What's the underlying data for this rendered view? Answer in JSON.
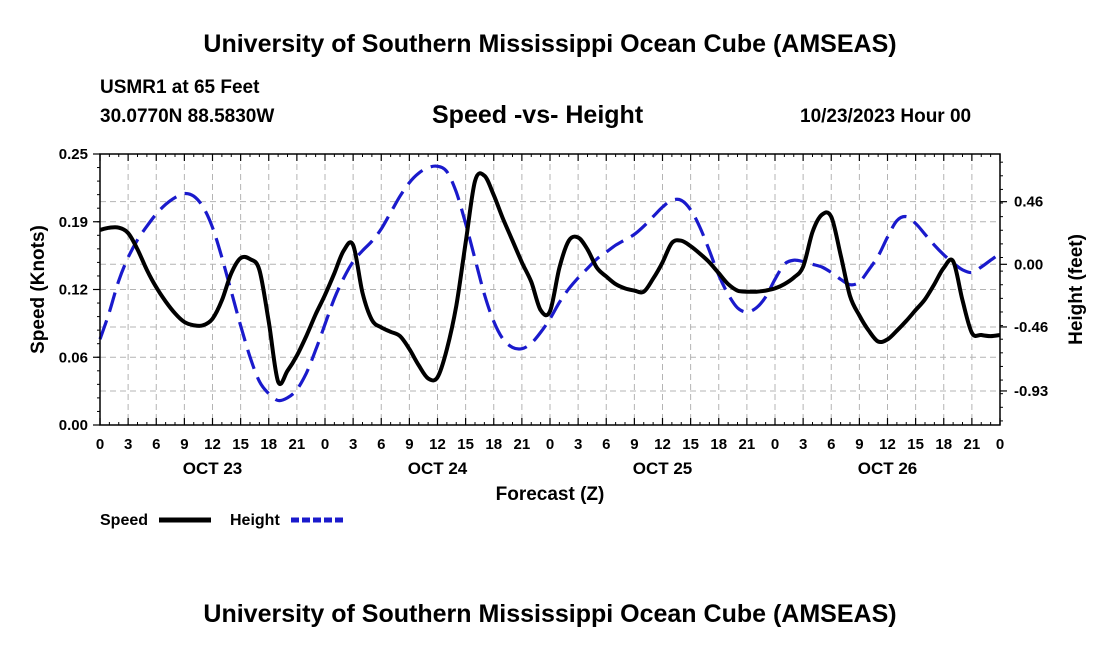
{
  "header": {
    "title": "University of Southern Mississippi Ocean Cube (AMSEAS)",
    "footer_title": "University of Southern Mississippi Ocean Cube (AMSEAS)",
    "station_name": "USMR1 at 65 Feet",
    "coordinates": "30.0770N  88.5830W",
    "chart_title": "Speed -vs- Height",
    "datetime": "10/23/2023 Hour 00"
  },
  "chart_data": {
    "type": "line",
    "title": "Speed -vs- Height",
    "xlabel": "Forecast (Z)",
    "ylabel": "Speed (Knots)",
    "y2label": "Height (feet)",
    "xlim": [
      0,
      96
    ],
    "ylim": [
      0,
      0.25
    ],
    "y2lim": [
      -1.18,
      0.81
    ],
    "y_ticks": [
      "0.00",
      "0.06",
      "0.12",
      "0.19",
      "0.25"
    ],
    "y_tick_values": [
      0,
      0.0625,
      0.125,
      0.1875,
      0.25
    ],
    "y2_ticks": [
      "0.46",
      "0.00",
      "-0.46",
      "-0.93"
    ],
    "y2_tick_values": [
      0.46,
      0.0,
      -0.46,
      -0.93
    ],
    "x_tick_labels": [
      "0",
      "3",
      "6",
      "9",
      "12",
      "15",
      "18",
      "21",
      "0",
      "3",
      "6",
      "9",
      "12",
      "15",
      "18",
      "21",
      "0",
      "3",
      "6",
      "9",
      "12",
      "15",
      "18",
      "21",
      "0",
      "3",
      "6",
      "9",
      "12",
      "15",
      "18",
      "21",
      "0"
    ],
    "day_labels": [
      {
        "label": "OCT 23",
        "hour": 12
      },
      {
        "label": "OCT 24",
        "hour": 36
      },
      {
        "label": "OCT 25",
        "hour": 60
      },
      {
        "label": "OCT 26",
        "hour": 84
      }
    ],
    "grid": true,
    "legend": [
      {
        "name": "Speed",
        "color": "#000000",
        "style": "solid"
      },
      {
        "name": "Height",
        "color": "#1a1acc",
        "style": "dashed"
      }
    ],
    "series": [
      {
        "name": "Speed",
        "axis": "left",
        "color": "#000000",
        "x": [
          0,
          1,
          2,
          3,
          4,
          5,
          6,
          7,
          8,
          9,
          10,
          11,
          12,
          13,
          14,
          15,
          16,
          17,
          18,
          19,
          20,
          21,
          22,
          23,
          24,
          25,
          26,
          27,
          28,
          29,
          30,
          31,
          32,
          33,
          34,
          35,
          36,
          37,
          38,
          39,
          40,
          41,
          42,
          43,
          44,
          45,
          46,
          47,
          48,
          49,
          50,
          51,
          52,
          53,
          54,
          55,
          56,
          57,
          58,
          59,
          60,
          61,
          62,
          63,
          64,
          65,
          66,
          67,
          68,
          69,
          70,
          71,
          72,
          73,
          74,
          75,
          76,
          77,
          78,
          79,
          80,
          81,
          82,
          83,
          84,
          85,
          86,
          87,
          88,
          89,
          90,
          91,
          92,
          93,
          94,
          95,
          96
        ],
        "values": [
          0.18,
          0.182,
          0.182,
          0.177,
          0.162,
          0.143,
          0.127,
          0.114,
          0.103,
          0.095,
          0.092,
          0.092,
          0.098,
          0.115,
          0.14,
          0.154,
          0.153,
          0.143,
          0.095,
          0.04,
          0.05,
          0.064,
          0.082,
          0.102,
          0.12,
          0.14,
          0.161,
          0.166,
          0.122,
          0.097,
          0.09,
          0.086,
          0.082,
          0.07,
          0.055,
          0.043,
          0.044,
          0.07,
          0.11,
          0.168,
          0.225,
          0.23,
          0.212,
          0.19,
          0.17,
          0.15,
          0.132,
          0.106,
          0.105,
          0.145,
          0.17,
          0.173,
          0.162,
          0.145,
          0.137,
          0.13,
          0.126,
          0.124,
          0.123,
          0.135,
          0.15,
          0.168,
          0.17,
          0.165,
          0.158,
          0.15,
          0.14,
          0.13,
          0.124,
          0.123,
          0.123,
          0.124,
          0.126,
          0.13,
          0.136,
          0.146,
          0.178,
          0.194,
          0.192,
          0.157,
          0.119,
          0.101,
          0.087,
          0.077,
          0.079,
          0.087,
          0.096,
          0.106,
          0.116,
          0.13,
          0.145,
          0.151,
          0.115,
          0.085,
          0.083,
          0.082,
          0.083
        ]
      },
      {
        "name": "Height",
        "axis": "right",
        "color": "#1a1acc",
        "x": [
          0,
          1,
          2,
          3,
          4,
          5,
          6,
          7,
          8,
          9,
          10,
          11,
          12,
          13,
          14,
          15,
          16,
          17,
          18,
          19,
          20,
          21,
          22,
          23,
          24,
          25,
          26,
          27,
          28,
          29,
          30,
          31,
          32,
          33,
          34,
          35,
          36,
          37,
          38,
          39,
          40,
          41,
          42,
          43,
          44,
          45,
          46,
          47,
          48,
          49,
          50,
          51,
          52,
          53,
          54,
          55,
          56,
          57,
          58,
          59,
          60,
          61,
          62,
          63,
          64,
          65,
          66,
          67,
          68,
          69,
          70,
          71,
          72,
          73,
          74,
          75,
          76,
          77,
          78,
          79,
          80,
          81,
          82,
          83,
          84,
          85,
          86,
          87,
          88,
          89,
          90,
          91,
          92,
          93,
          94,
          95,
          96
        ],
        "values": [
          -0.55,
          -0.35,
          -0.12,
          0.05,
          0.18,
          0.28,
          0.37,
          0.44,
          0.49,
          0.52,
          0.5,
          0.42,
          0.27,
          0.05,
          -0.2,
          -0.45,
          -0.68,
          -0.86,
          -0.95,
          -1.0,
          -0.98,
          -0.92,
          -0.8,
          -0.63,
          -0.44,
          -0.25,
          -0.1,
          0.02,
          0.1,
          0.17,
          0.26,
          0.38,
          0.5,
          0.6,
          0.67,
          0.71,
          0.72,
          0.68,
          0.53,
          0.3,
          0.04,
          -0.22,
          -0.42,
          -0.55,
          -0.61,
          -0.62,
          -0.58,
          -0.5,
          -0.4,
          -0.28,
          -0.18,
          -0.1,
          -0.03,
          0.04,
          0.09,
          0.14,
          0.18,
          0.22,
          0.28,
          0.35,
          0.42,
          0.47,
          0.47,
          0.4,
          0.27,
          0.1,
          -0.08,
          -0.22,
          -0.32,
          -0.35,
          -0.32,
          -0.24,
          -0.11,
          0.0,
          0.03,
          0.02,
          0.0,
          -0.02,
          -0.06,
          -0.11,
          -0.15,
          -0.13,
          -0.04,
          0.06,
          0.2,
          0.32,
          0.35,
          0.3,
          0.22,
          0.14,
          0.07,
          0.01,
          -0.04,
          -0.06,
          -0.02,
          0.03,
          0.08
        ]
      }
    ]
  }
}
